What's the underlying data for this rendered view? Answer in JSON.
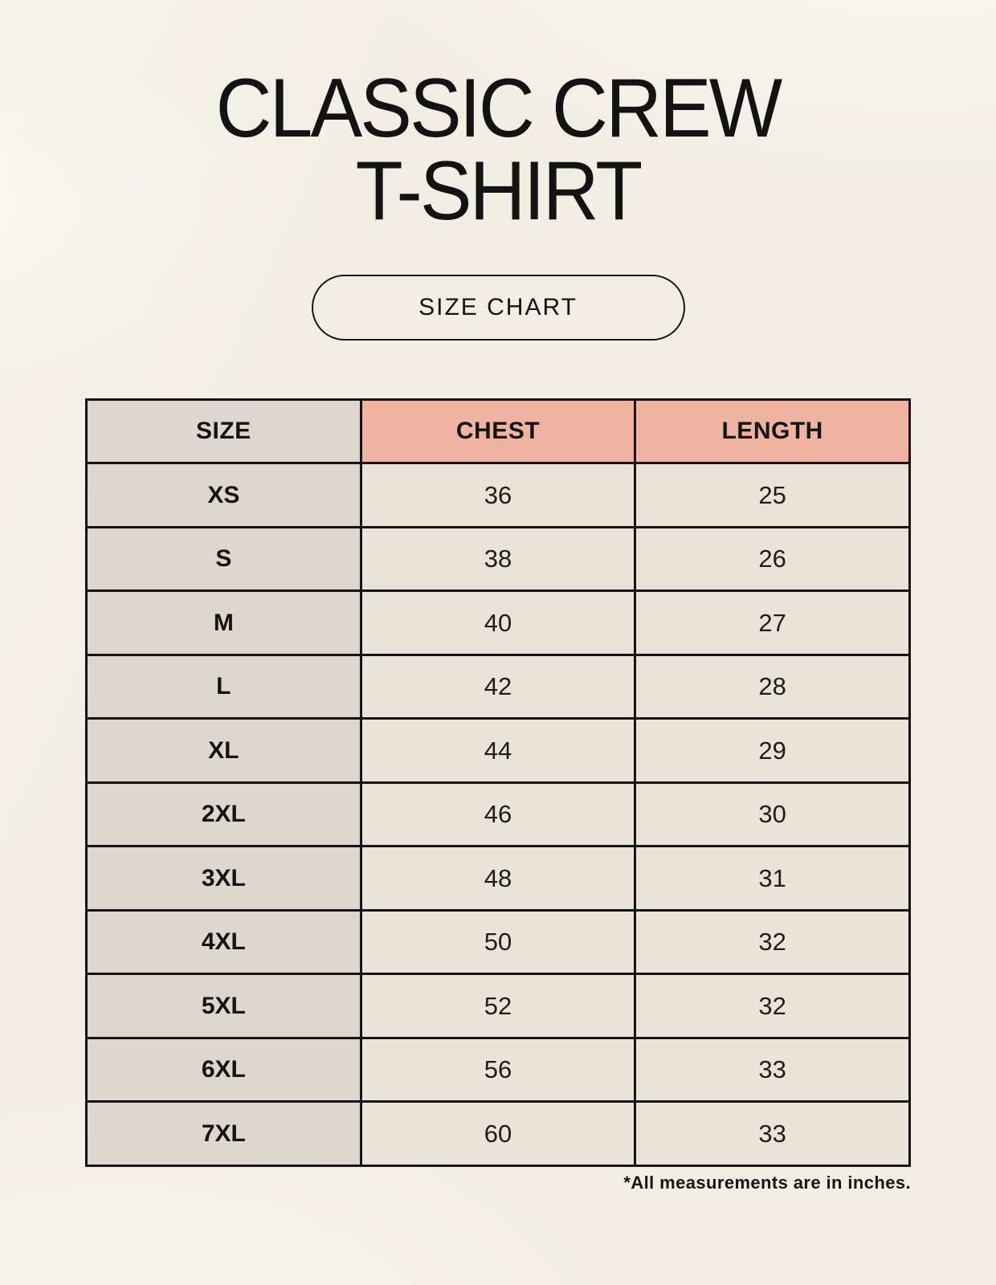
{
  "header": {
    "title_line1": "CLASSIC CREW",
    "title_line2": "T-SHIRT",
    "badge_label": "SIZE CHART"
  },
  "footnote": "*All measurements are in inches.",
  "colors": {
    "background": "#f2eee4",
    "header_accent": "#f1b3a1",
    "size_column": "#ded7d0",
    "data_cell": "#eae3d8",
    "border": "#141414",
    "text": "#141414"
  },
  "chart_data": {
    "type": "table",
    "title": "CLASSIC CREW T-SHIRT",
    "subtitle": "SIZE CHART",
    "columns": [
      "SIZE",
      "CHEST",
      "LENGTH"
    ],
    "rows": [
      [
        "XS",
        "36",
        "25"
      ],
      [
        "S",
        "38",
        "26"
      ],
      [
        "M",
        "40",
        "27"
      ],
      [
        "L",
        "42",
        "28"
      ],
      [
        "XL",
        "44",
        "29"
      ],
      [
        "2XL",
        "46",
        "30"
      ],
      [
        "3XL",
        "48",
        "31"
      ],
      [
        "4XL",
        "50",
        "32"
      ],
      [
        "5XL",
        "52",
        "32"
      ],
      [
        "6XL",
        "56",
        "33"
      ],
      [
        "7XL",
        "60",
        "33"
      ]
    ],
    "units_note": "*All measurements are in inches."
  }
}
